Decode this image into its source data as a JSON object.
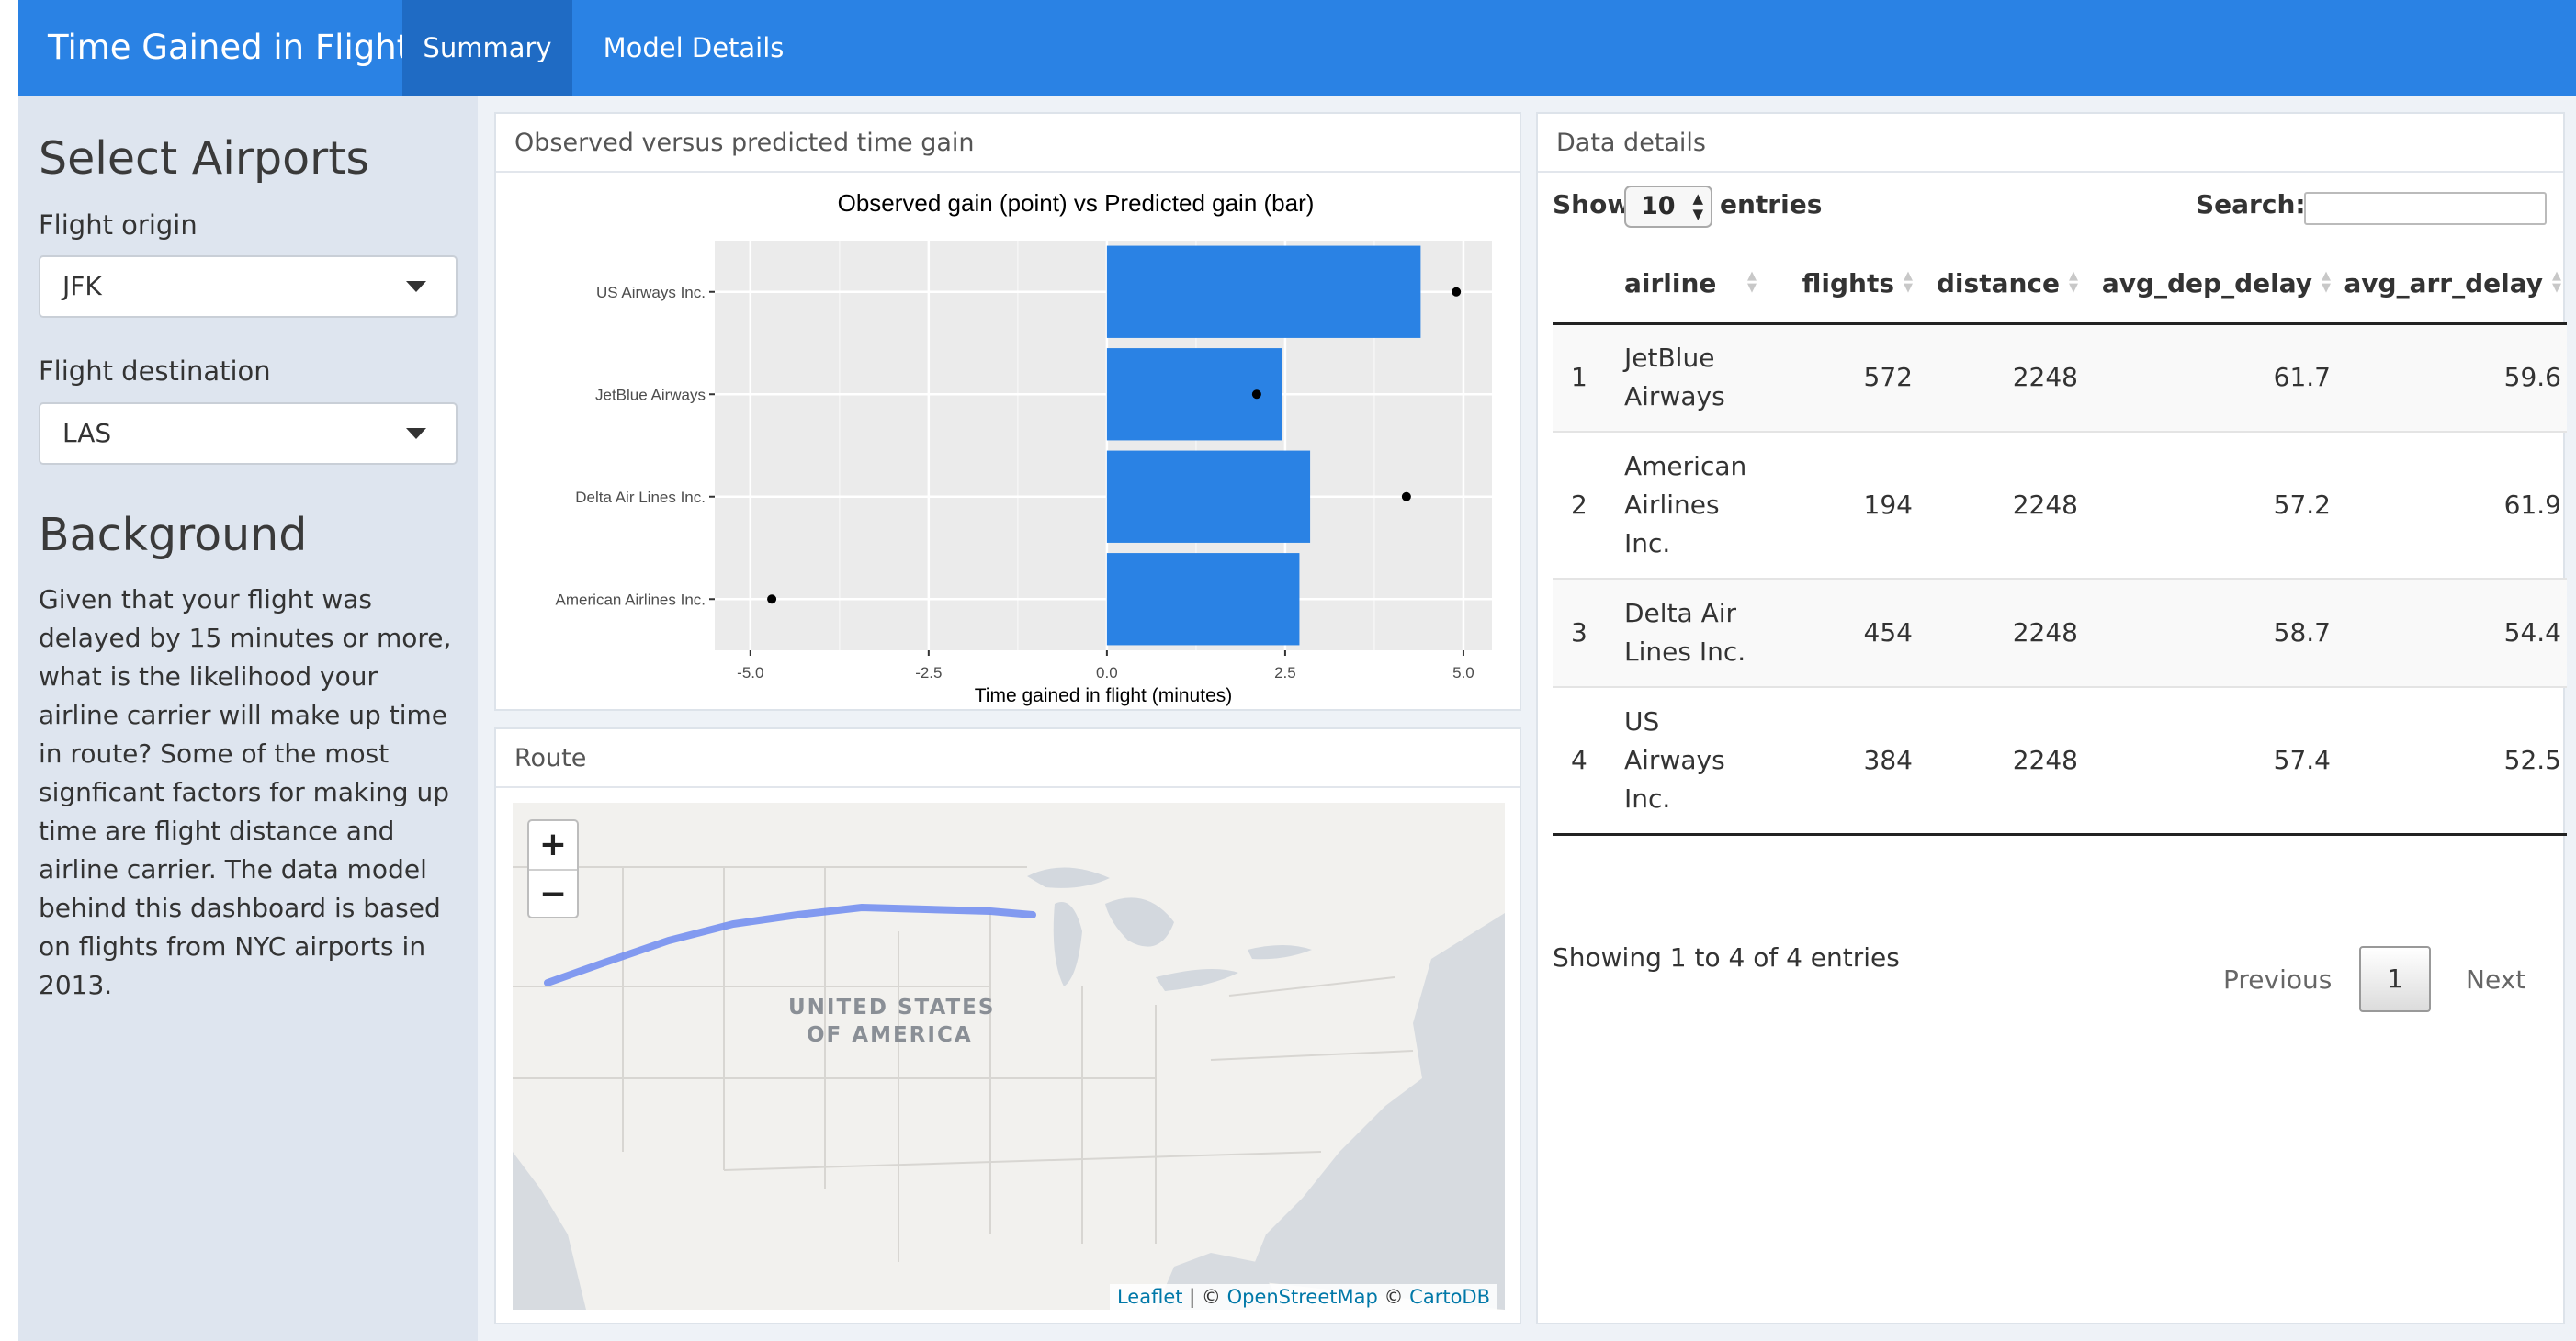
{
  "app": {
    "title": "Time Gained in Flight",
    "tabs": [
      {
        "label": "Summary",
        "active": true
      },
      {
        "label": "Model Details",
        "active": false
      }
    ]
  },
  "sidebar": {
    "select_title": "Select Airports",
    "origin_label": "Flight origin",
    "origin_value": "JFK",
    "destination_label": "Flight destination",
    "destination_value": "LAS",
    "background_title": "Background",
    "background_text": "Given that your flight was delayed by 15 minutes or more, what is the likelihood your airline carrier will make up time in route? Some of the most signficant factors for making up time are flight distance and airline carrier. The data model behind this dashboard is based on flights from NYC airports in 2013."
  },
  "chart_panel": {
    "header": "Observed versus predicted time gain"
  },
  "chart_data": {
    "type": "bar",
    "title": "Observed gain (point) vs Predicted gain (bar)",
    "xlabel": "Time gained in flight (minutes)",
    "ylabel": "",
    "orientation": "horizontal",
    "categories": [
      "US Airways Inc.",
      "JetBlue Airways",
      "Delta Air Lines Inc.",
      "American Airlines Inc."
    ],
    "series": [
      {
        "values": [
          4.4,
          2.45,
          2.85,
          2.7
        ]
      },
      {
        "values": [
          4.9,
          2.1,
          4.2,
          -4.7
        ]
      }
    ],
    "xlim": [
      -5.5,
      5.4
    ],
    "xticks": [
      "-5.0",
      "-2.5",
      "0.0",
      "2.5",
      "5.0"
    ],
    "bar_color": "#2a82e4",
    "point_color": "#000000",
    "panel_color": "#ebebeb",
    "grid": true
  },
  "route_panel": {
    "header": "Route",
    "zoom_in": "+",
    "zoom_out": "−",
    "country_label_line1": "UNITED STATES",
    "country_label_line2": "OF AMERICA",
    "attribution": {
      "leaflet": "Leaflet",
      "sep1": " | © ",
      "osm": "OpenStreetMap",
      "sep2": " © ",
      "carto": "CartoDB"
    },
    "route_color": "#6f8cf0"
  },
  "data_panel": {
    "header": "Data details",
    "show_label": "Show",
    "length_value": "10",
    "entries_label": "entries",
    "search_label": "Search:",
    "columns": [
      "",
      "airline",
      "flights",
      "distance",
      "avg_dep_delay",
      "avg_arr_delay"
    ],
    "rows": [
      {
        "idx": "1",
        "airline": "JetBlue Airways",
        "flights": "572",
        "distance": "2248",
        "avg_dep_delay": "61.7",
        "avg_arr_delay": "59.6"
      },
      {
        "idx": "2",
        "airline": "American Airlines Inc.",
        "flights": "194",
        "distance": "2248",
        "avg_dep_delay": "57.2",
        "avg_arr_delay": "61.9"
      },
      {
        "idx": "3",
        "airline": "Delta Air Lines Inc.",
        "flights": "454",
        "distance": "2248",
        "avg_dep_delay": "58.7",
        "avg_arr_delay": "54.4"
      },
      {
        "idx": "4",
        "airline": "US Airways Inc.",
        "flights": "384",
        "distance": "2248",
        "avg_dep_delay": "57.4",
        "avg_arr_delay": "52.5"
      }
    ],
    "info": "Showing 1 to 4 of 4 entries",
    "prev_label": "Previous",
    "page": "1",
    "next_label": "Next"
  }
}
